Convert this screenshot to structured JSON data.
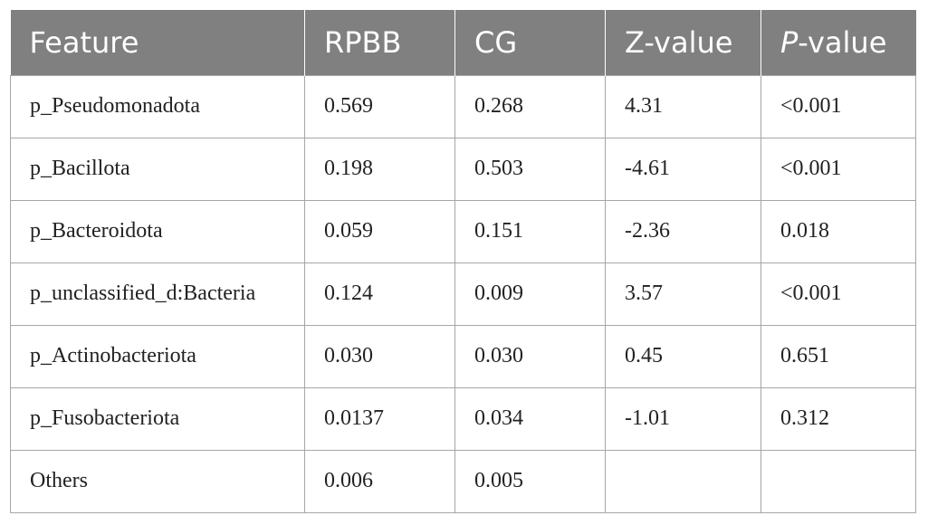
{
  "table": {
    "headers": {
      "feature": "Feature",
      "rpbb": "RPBB",
      "cg": "CG",
      "z": "Z-value",
      "p_italic": "P",
      "p_rest": "-value"
    },
    "rows": [
      {
        "feature": "p_Pseudomonadota",
        "rpbb": "0.569",
        "cg": "0.268",
        "z": "4.31",
        "p": "<0.001"
      },
      {
        "feature": "p_Bacillota",
        "rpbb": "0.198",
        "cg": "0.503",
        "z": "-4.61",
        "p": "<0.001"
      },
      {
        "feature": "p_Bacteroidota",
        "rpbb": "0.059",
        "cg": "0.151",
        "z": "-2.36",
        "p": "0.018"
      },
      {
        "feature": "p_unclassified_d:Bacteria",
        "rpbb": "0.124",
        "cg": "0.009",
        "z": "3.57",
        "p": "<0.001"
      },
      {
        "feature": "p_Actinobacteriota",
        "rpbb": "0.030",
        "cg": "0.030",
        "z": "0.45",
        "p": "0.651"
      },
      {
        "feature": "p_Fusobacteriota",
        "rpbb": "0.0137",
        "cg": "0.034",
        "z": "-1.01",
        "p": "0.312"
      },
      {
        "feature": "Others",
        "rpbb": "0.006",
        "cg": "0.005",
        "z": "",
        "p": ""
      }
    ]
  }
}
